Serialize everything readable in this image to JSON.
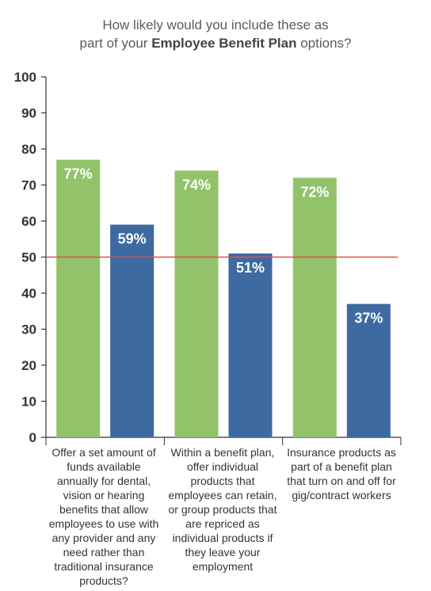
{
  "chart_data": {
    "type": "bar",
    "title_prefix": "How likely would you include these as",
    "title_mid": "part of your ",
    "title_bold": "Employee Benefit Plan",
    "title_suffix": " options?",
    "categories": [
      "Offer a set amount of funds available annually for dental, vision or hearing benefits that allow employees to use with any provider and any need rather than traditional insurance products?",
      "Within a benefit plan, offer individual products that employees can retain, or group products that are repriced as individual products if they leave your employment",
      "Insurance products as part of a benefit plan that turn on and off for gig/contract workers"
    ],
    "series": [
      {
        "values": [
          77,
          74,
          72
        ],
        "labels": [
          "77%",
          "74%",
          "72%"
        ]
      },
      {
        "values": [
          59,
          51,
          37
        ],
        "labels": [
          "59%",
          "51%",
          "37%"
        ]
      }
    ],
    "ylim": [
      0,
      100
    ],
    "yticks": [
      0,
      10,
      20,
      30,
      40,
      50,
      60,
      70,
      80,
      90,
      100
    ],
    "reference_line": 50,
    "colors": {
      "series1": "#92c36a",
      "series2": "#3d6aa1",
      "reference": "#d9534f",
      "axis": "#333333"
    },
    "grid": false,
    "legend": "none"
  }
}
